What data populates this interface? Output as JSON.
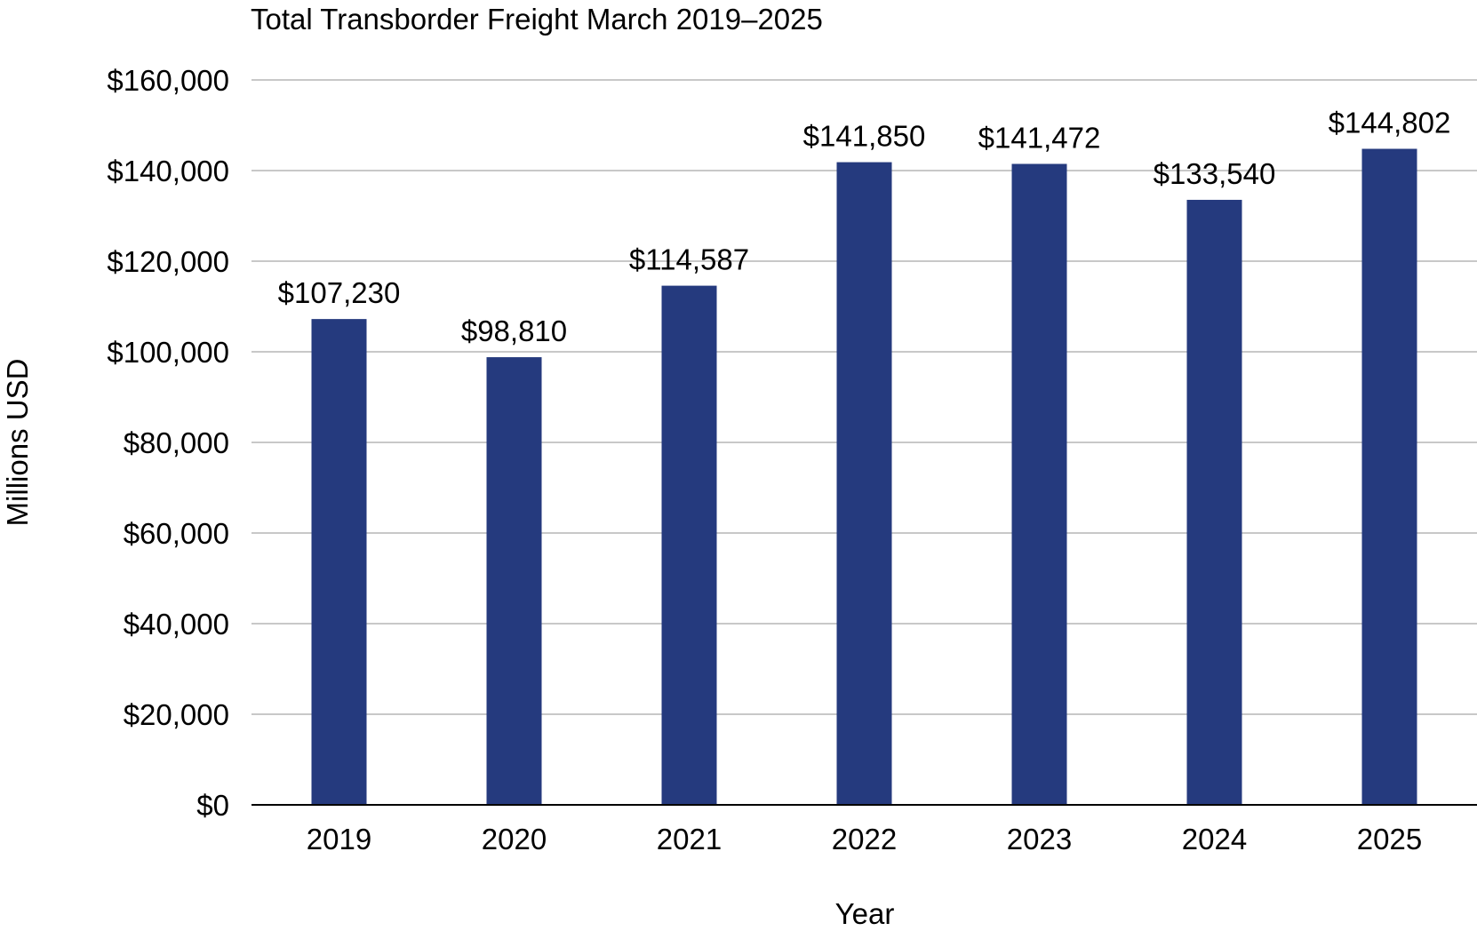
{
  "chart_data": {
    "type": "bar",
    "title": "Total Transborder Freight March 2019–2025",
    "xlabel": "Year",
    "ylabel": "Millions USD",
    "categories": [
      "2019",
      "2020",
      "2021",
      "2022",
      "2023",
      "2024",
      "2025"
    ],
    "values": [
      107230,
      98810,
      114587,
      141850,
      141472,
      133540,
      144802
    ],
    "data_labels": [
      "$107,230",
      "$98,810",
      "$114,587",
      "$141,850",
      "$141,472",
      "$133,540",
      "$144,802"
    ],
    "ylim": [
      0,
      160000
    ],
    "yticks": [
      0,
      20000,
      40000,
      60000,
      80000,
      100000,
      120000,
      140000,
      160000
    ],
    "ytick_labels": [
      "$0",
      "$20,000",
      "$40,000",
      "$60,000",
      "$80,000",
      "$100,000",
      "$120,000",
      "$140,000",
      "$160,000"
    ],
    "grid": "horizontal",
    "legend": "none",
    "bar_color": "#253a7e",
    "grid_color": "#c8c8c8"
  }
}
